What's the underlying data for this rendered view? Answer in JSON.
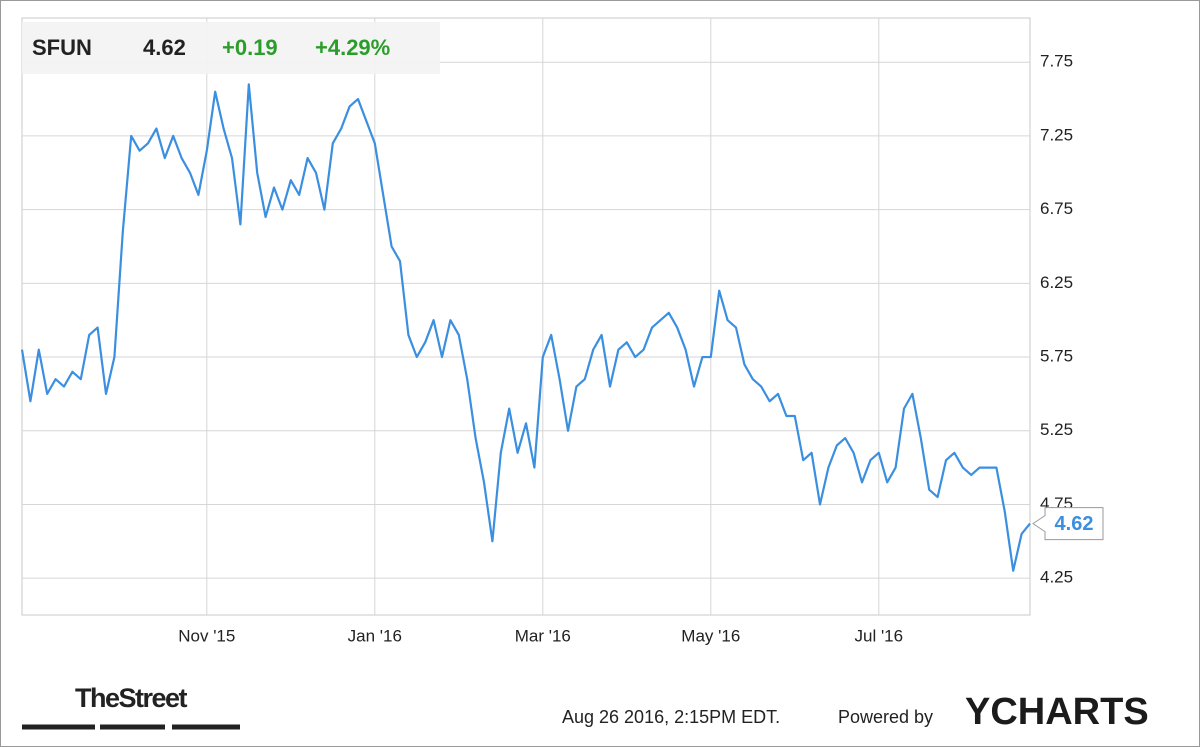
{
  "chart_data": {
    "type": "line",
    "header": {
      "ticker": "SFUN",
      "price": "4.62",
      "change": "+0.19",
      "change_pct": "+4.29%"
    },
    "categories": [
      null,
      null,
      null,
      null,
      null,
      null,
      null,
      null,
      null,
      null,
      null,
      null,
      null,
      null,
      null,
      null,
      null,
      null,
      null,
      null,
      null,
      null,
      "Nov '15",
      null,
      null,
      null,
      null,
      null,
      null,
      null,
      null,
      null,
      null,
      null,
      null,
      null,
      null,
      null,
      null,
      null,
      null,
      null,
      "Jan '16",
      null,
      null,
      null,
      null,
      null,
      null,
      null,
      null,
      null,
      null,
      null,
      null,
      null,
      null,
      null,
      null,
      null,
      null,
      null,
      "Mar '16",
      null,
      null,
      null,
      null,
      null,
      null,
      null,
      null,
      null,
      null,
      null,
      null,
      null,
      null,
      null,
      null,
      null,
      null,
      null,
      "May '16",
      null,
      null,
      null,
      null,
      null,
      null,
      null,
      null,
      null,
      null,
      null,
      null,
      null,
      null,
      null,
      null,
      null,
      null,
      null,
      "Jul '16",
      null,
      null,
      null,
      null,
      null,
      null,
      null,
      null,
      null,
      null,
      null,
      null,
      null,
      null,
      null,
      null,
      null,
      null
    ],
    "values": [
      5.8,
      5.45,
      5.8,
      5.5,
      5.6,
      5.55,
      5.65,
      5.6,
      5.9,
      5.95,
      5.5,
      5.75,
      6.6,
      7.25,
      7.15,
      7.2,
      7.3,
      7.1,
      7.25,
      7.1,
      7.0,
      6.85,
      7.15,
      7.55,
      7.3,
      7.1,
      6.65,
      7.6,
      7.0,
      6.7,
      6.9,
      6.75,
      6.95,
      6.85,
      7.1,
      7.0,
      6.75,
      7.2,
      7.3,
      7.45,
      7.5,
      7.35,
      7.2,
      6.85,
      6.5,
      6.4,
      5.9,
      5.75,
      5.85,
      6.0,
      5.75,
      6.0,
      5.9,
      5.6,
      5.2,
      4.9,
      4.5,
      5.1,
      5.4,
      5.1,
      5.3,
      5.0,
      5.75,
      5.9,
      5.6,
      5.25,
      5.55,
      5.6,
      5.8,
      5.9,
      5.55,
      5.8,
      5.85,
      5.75,
      5.8,
      5.95,
      6.0,
      6.05,
      5.95,
      5.8,
      5.55,
      5.75,
      5.75,
      6.2,
      6.0,
      5.95,
      5.7,
      5.6,
      5.55,
      5.45,
      5.5,
      5.35,
      5.35,
      5.05,
      5.1,
      4.75,
      5.0,
      5.15,
      5.2,
      5.1,
      4.9,
      5.05,
      5.1,
      4.9,
      5.0,
      5.4,
      5.5,
      5.2,
      4.85,
      4.8,
      5.05,
      5.1,
      5.0,
      4.95,
      5.0,
      5.0,
      5.0,
      4.7,
      4.3,
      4.55,
      4.62
    ],
    "color": "#3b8fe0",
    "ylim": [
      4.0,
      8.05
    ],
    "yticks": [
      4.25,
      4.75,
      5.25,
      5.75,
      6.25,
      6.75,
      7.25,
      7.75
    ],
    "grid": true,
    "footer": {
      "source_logo": "TheStreet",
      "timestamp": "Aug 26 2016, 2:15PM EDT.",
      "powered_by": "Powered by",
      "brand": "YCHARTS"
    }
  }
}
